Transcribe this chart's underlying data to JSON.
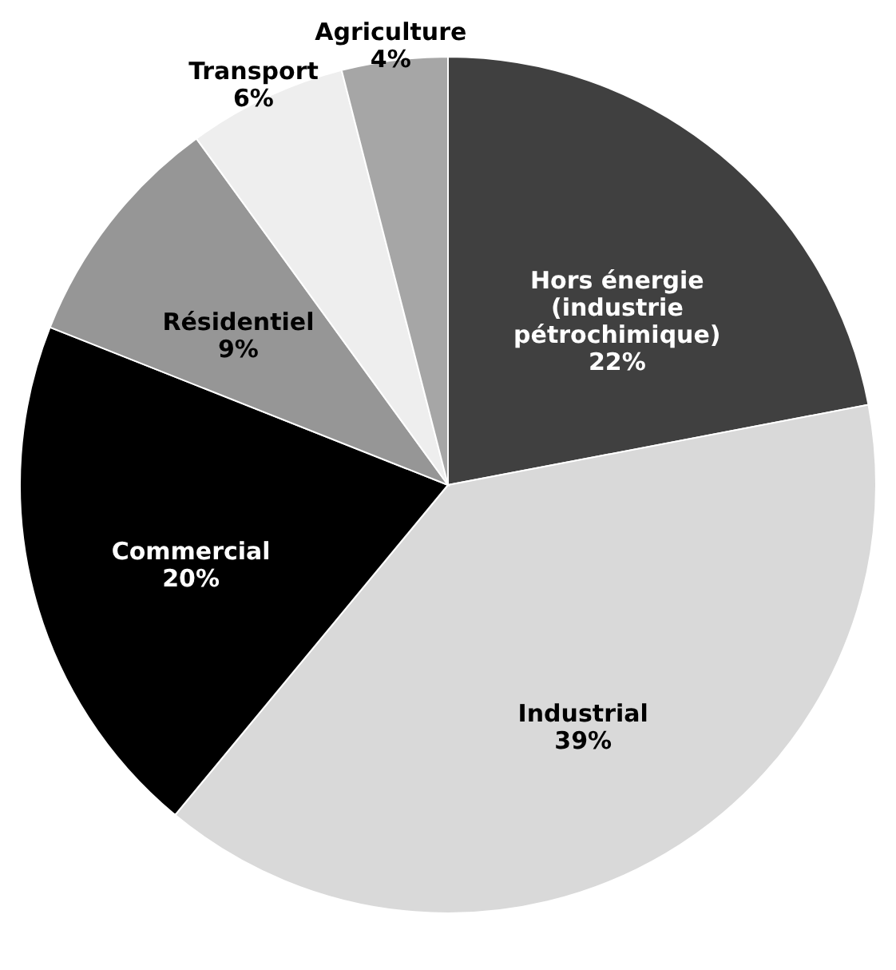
{
  "chart_data": {
    "type": "pie",
    "categories": [
      "Hors énergie (industrie pétrochimique)",
      "Industrial",
      "Commercial",
      "Résidentiel",
      "Transport",
      "Agriculture"
    ],
    "values": [
      22,
      39,
      20,
      9,
      6,
      4
    ],
    "value_labels": [
      "22%",
      "39%",
      "20%",
      "9%",
      "6%",
      "4%"
    ],
    "colors": [
      "#404040",
      "#d9d9d9",
      "#000000",
      "#969696",
      "#eeeeee",
      "#a6a6a6"
    ],
    "legend": false
  }
}
